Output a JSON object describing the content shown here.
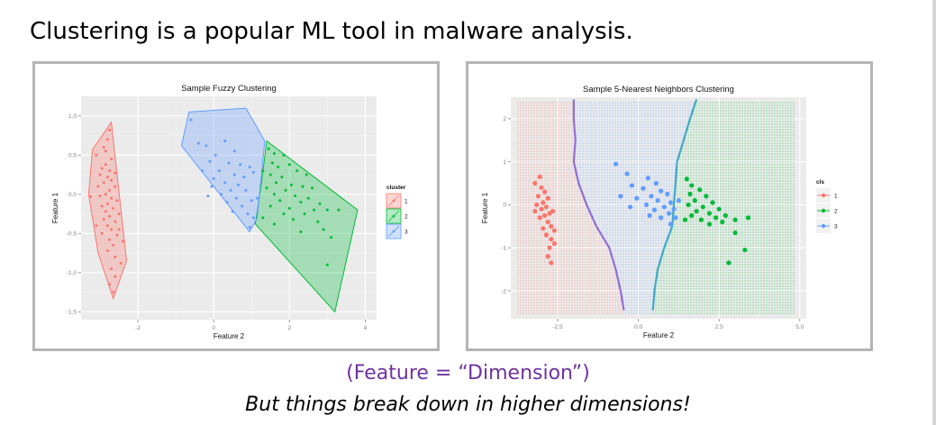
{
  "slide": {
    "headline": "Clustering is a popular ML tool in malware analysis.",
    "feature_note": "(Feature = “Dimension”)",
    "closing": "But things break down in higher dimensions!"
  },
  "chart_data": [
    {
      "type": "scatter",
      "title": "Sample Fuzzy Clustering",
      "xlabel": "Feature 2",
      "ylabel": "Feature 1",
      "xlim": [
        -3.5,
        4.3
      ],
      "ylim": [
        -1.6,
        1.25
      ],
      "xticks": [
        -2,
        0,
        2,
        4
      ],
      "yticks": [
        1.0,
        0.5,
        0.0,
        -0.5,
        -1.0,
        -1.5
      ],
      "xtick_labels": [
        "-2",
        "0",
        "2",
        "4"
      ],
      "ytick_labels": [
        "1.0",
        "0.5",
        "0.0",
        "-0.5",
        "-1.0",
        "-1.5"
      ],
      "grid": true,
      "legend": {
        "title": "cluster",
        "position": "right",
        "entries": [
          "1",
          "2",
          "3"
        ]
      },
      "series": [
        {
          "name": "1",
          "color": "#f8766d",
          "hull": [
            [
              -2.7,
              0.92
            ],
            [
              -2.3,
              -0.85
            ],
            [
              -2.65,
              -1.33
            ],
            [
              -3.05,
              -0.75
            ],
            [
              -3.3,
              0.0
            ],
            [
              -3.2,
              0.57
            ]
          ],
          "points": [
            [
              -2.75,
              0.82
            ],
            [
              -2.8,
              0.7
            ],
            [
              -2.9,
              0.6
            ],
            [
              -3.1,
              0.5
            ],
            [
              -2.7,
              0.45
            ],
            [
              -2.85,
              0.38
            ],
            [
              -2.95,
              0.33
            ],
            [
              -2.75,
              0.3
            ],
            [
              -2.6,
              0.27
            ],
            [
              -3.0,
              0.25
            ],
            [
              -2.8,
              0.22
            ],
            [
              -2.7,
              0.18
            ],
            [
              -2.9,
              0.15
            ],
            [
              -3.05,
              0.1
            ],
            [
              -2.6,
              0.1
            ],
            [
              -2.75,
              0.05
            ],
            [
              -2.85,
              0.0
            ],
            [
              -3.0,
              -0.02
            ],
            [
              -3.25,
              -0.03
            ],
            [
              -2.7,
              -0.05
            ],
            [
              -2.55,
              -0.08
            ],
            [
              -2.8,
              -0.12
            ],
            [
              -2.95,
              -0.15
            ],
            [
              -2.65,
              -0.18
            ],
            [
              -2.85,
              -0.22
            ],
            [
              -2.5,
              -0.25
            ],
            [
              -2.75,
              -0.28
            ],
            [
              -2.9,
              -0.32
            ],
            [
              -2.6,
              -0.35
            ],
            [
              -2.8,
              -0.4
            ],
            [
              -2.7,
              -0.45
            ],
            [
              -2.95,
              -0.5
            ],
            [
              -2.55,
              -0.52
            ],
            [
              -2.75,
              -0.58
            ],
            [
              -2.65,
              -0.65
            ],
            [
              -2.8,
              -0.72
            ],
            [
              -2.6,
              -0.8
            ],
            [
              -2.45,
              -0.88
            ],
            [
              -2.7,
              -0.95
            ],
            [
              -2.6,
              -1.05
            ],
            [
              -2.75,
              -1.15
            ],
            [
              -2.65,
              -1.25
            ],
            [
              -2.5,
              -0.45
            ],
            [
              -2.4,
              -0.6
            ],
            [
              -2.85,
              0.55
            ],
            [
              -3.1,
              -0.4
            ]
          ]
        },
        {
          "name": "2",
          "color": "#00ba38",
          "hull": [
            [
              1.4,
              0.68
            ],
            [
              3.8,
              -0.2
            ],
            [
              3.2,
              -1.5
            ],
            [
              1.1,
              -0.38
            ],
            [
              1.25,
              0.1
            ]
          ],
          "points": [
            [
              1.45,
              0.58
            ],
            [
              1.6,
              0.52
            ],
            [
              1.85,
              0.5
            ],
            [
              1.55,
              0.4
            ],
            [
              1.7,
              0.35
            ],
            [
              2.0,
              0.38
            ],
            [
              1.3,
              0.3
            ],
            [
              2.2,
              0.3
            ],
            [
              1.5,
              0.25
            ],
            [
              1.8,
              0.22
            ],
            [
              2.45,
              0.25
            ],
            [
              1.65,
              0.15
            ],
            [
              2.05,
              0.12
            ],
            [
              2.35,
              0.1
            ],
            [
              1.4,
              0.08
            ],
            [
              1.9,
              0.05
            ],
            [
              2.6,
              0.08
            ],
            [
              1.6,
              0.0
            ],
            [
              2.15,
              -0.02
            ],
            [
              2.5,
              -0.05
            ],
            [
              1.75,
              -0.08
            ],
            [
              2.3,
              -0.1
            ],
            [
              2.8,
              -0.12
            ],
            [
              1.5,
              -0.15
            ],
            [
              2.0,
              -0.18
            ],
            [
              2.65,
              -0.2
            ],
            [
              3.0,
              -0.2
            ],
            [
              1.85,
              -0.25
            ],
            [
              2.4,
              -0.25
            ],
            [
              3.3,
              -0.2
            ],
            [
              1.3,
              -0.3
            ],
            [
              2.1,
              -0.32
            ],
            [
              2.75,
              -0.35
            ],
            [
              1.6,
              -0.38
            ],
            [
              2.9,
              -0.45
            ],
            [
              3.1,
              -0.55
            ],
            [
              2.3,
              -0.48
            ],
            [
              3.0,
              -0.9
            ]
          ]
        },
        {
          "name": "3",
          "color": "#619cff",
          "hull": [
            [
              -0.65,
              1.05
            ],
            [
              0.85,
              1.1
            ],
            [
              1.35,
              0.68
            ],
            [
              1.15,
              -0.3
            ],
            [
              0.95,
              -0.48
            ],
            [
              -0.85,
              0.62
            ]
          ],
          "points": [
            [
              -0.6,
              0.95
            ],
            [
              -0.4,
              0.65
            ],
            [
              -0.2,
              0.62
            ],
            [
              0.3,
              0.68
            ],
            [
              0.55,
              0.55
            ],
            [
              0.05,
              0.5
            ],
            [
              -0.1,
              0.42
            ],
            [
              0.4,
              0.4
            ],
            [
              0.7,
              0.38
            ],
            [
              0.95,
              0.35
            ],
            [
              0.15,
              0.3
            ],
            [
              -0.3,
              0.3
            ],
            [
              0.55,
              0.25
            ],
            [
              0.8,
              0.22
            ],
            [
              1.05,
              0.28
            ],
            [
              0.0,
              0.2
            ],
            [
              0.3,
              0.15
            ],
            [
              0.65,
              0.12
            ],
            [
              -0.05,
              0.1
            ],
            [
              0.45,
              0.05
            ],
            [
              0.85,
              0.05
            ],
            [
              0.2,
              0.0
            ],
            [
              -0.15,
              -0.02
            ],
            [
              0.6,
              -0.05
            ],
            [
              1.0,
              -0.08
            ],
            [
              0.35,
              -0.1
            ],
            [
              0.75,
              -0.15
            ],
            [
              0.9,
              -0.25
            ],
            [
              1.05,
              -0.3
            ],
            [
              0.95,
              -0.42
            ],
            [
              0.5,
              -0.22
            ],
            [
              1.15,
              -0.05
            ]
          ]
        }
      ]
    },
    {
      "type": "scatter",
      "title": "Sample 5-Nearest Neighbors Clustering",
      "xlabel": "Feature 2",
      "ylabel": "Feature 1",
      "xlim": [
        -3.95,
        5.2
      ],
      "ylim": [
        -2.65,
        2.5
      ],
      "xticks": [
        -2.5,
        0.0,
        2.5,
        5.0
      ],
      "yticks": [
        2,
        1,
        0,
        -1,
        -2
      ],
      "xtick_labels": [
        "-2.5",
        "0.0",
        "2.5",
        "5.0"
      ],
      "ytick_labels": [
        "2",
        "1",
        "0",
        "-1",
        "-2"
      ],
      "grid": true,
      "legend": {
        "title": "cls",
        "position": "right",
        "entries": [
          "1",
          "2",
          "3"
        ]
      },
      "decision_boundaries": {
        "class1_class3": [
          [
            -2.0,
            2.45
          ],
          [
            -2.0,
            2.0
          ],
          [
            -1.95,
            1.5
          ],
          [
            -2.0,
            1.0
          ],
          [
            -1.85,
            0.5
          ],
          [
            -1.6,
            0.0
          ],
          [
            -1.3,
            -0.5
          ],
          [
            -0.9,
            -1.0
          ],
          [
            -0.7,
            -1.5
          ],
          [
            -0.55,
            -2.0
          ],
          [
            -0.45,
            -2.45
          ]
        ],
        "class3_class2": [
          [
            1.8,
            2.45
          ],
          [
            1.6,
            2.0
          ],
          [
            1.4,
            1.5
          ],
          [
            1.2,
            1.0
          ],
          [
            1.15,
            0.5
          ],
          [
            1.1,
            0.0
          ],
          [
            1.05,
            -0.5
          ],
          [
            0.8,
            -1.0
          ],
          [
            0.6,
            -1.5
          ],
          [
            0.5,
            -2.0
          ],
          [
            0.45,
            -2.45
          ]
        ]
      },
      "series": [
        {
          "name": "1",
          "color": "#f8766d",
          "points": [
            [
              -3.2,
              0.5
            ],
            [
              -3.0,
              0.4
            ],
            [
              -2.9,
              0.3
            ],
            [
              -3.1,
              0.2
            ],
            [
              -2.8,
              0.15
            ],
            [
              -2.95,
              0.05
            ],
            [
              -3.15,
              0.0
            ],
            [
              -2.85,
              -0.05
            ],
            [
              -3.0,
              -0.1
            ],
            [
              -2.75,
              -0.2
            ],
            [
              -2.9,
              -0.25
            ],
            [
              -3.05,
              -0.3
            ],
            [
              -2.8,
              -0.4
            ],
            [
              -2.7,
              -0.5
            ],
            [
              -2.95,
              -0.55
            ],
            [
              -2.6,
              -0.6
            ],
            [
              -2.85,
              -0.7
            ],
            [
              -2.7,
              -0.8
            ],
            [
              -2.6,
              -0.9
            ],
            [
              -2.75,
              -1.0
            ],
            [
              -2.8,
              -1.2
            ],
            [
              -2.7,
              -1.35
            ],
            [
              -3.05,
              0.65
            ],
            [
              -2.65,
              -0.15
            ],
            [
              -3.2,
              -0.15
            ]
          ]
        },
        {
          "name": "2",
          "color": "#00ba38",
          "points": [
            [
              1.5,
              0.6
            ],
            [
              1.65,
              0.45
            ],
            [
              1.9,
              0.35
            ],
            [
              1.6,
              0.25
            ],
            [
              2.1,
              0.2
            ],
            [
              1.75,
              0.1
            ],
            [
              2.3,
              0.05
            ],
            [
              1.55,
              0.0
            ],
            [
              2.0,
              -0.05
            ],
            [
              2.5,
              -0.1
            ],
            [
              1.8,
              -0.15
            ],
            [
              2.2,
              -0.2
            ],
            [
              2.7,
              -0.25
            ],
            [
              1.65,
              -0.25
            ],
            [
              2.4,
              -0.3
            ],
            [
              3.0,
              -0.35
            ],
            [
              1.95,
              -0.35
            ],
            [
              2.6,
              -0.4
            ],
            [
              3.4,
              -0.3
            ],
            [
              2.2,
              -0.45
            ],
            [
              3.0,
              -0.65
            ],
            [
              3.3,
              -1.05
            ],
            [
              2.8,
              -1.35
            ],
            [
              1.45,
              -0.35
            ]
          ]
        },
        {
          "name": "3",
          "color": "#619cff",
          "points": [
            [
              -0.7,
              0.95
            ],
            [
              -0.35,
              0.72
            ],
            [
              0.3,
              0.62
            ],
            [
              0.55,
              0.5
            ],
            [
              -0.2,
              0.45
            ],
            [
              0.15,
              0.38
            ],
            [
              0.7,
              0.32
            ],
            [
              0.9,
              0.25
            ],
            [
              0.4,
              0.2
            ],
            [
              -0.05,
              0.15
            ],
            [
              0.6,
              0.1
            ],
            [
              1.0,
              0.05
            ],
            [
              0.25,
              0.0
            ],
            [
              0.8,
              -0.05
            ],
            [
              1.1,
              -0.1
            ],
            [
              0.5,
              -0.12
            ],
            [
              0.95,
              -0.2
            ],
            [
              1.15,
              -0.3
            ],
            [
              1.0,
              -0.45
            ],
            [
              0.35,
              -0.25
            ],
            [
              1.25,
              0.1
            ],
            [
              -0.55,
              0.2
            ],
            [
              -0.25,
              -0.05
            ],
            [
              0.7,
              -0.3
            ]
          ]
        }
      ]
    }
  ]
}
